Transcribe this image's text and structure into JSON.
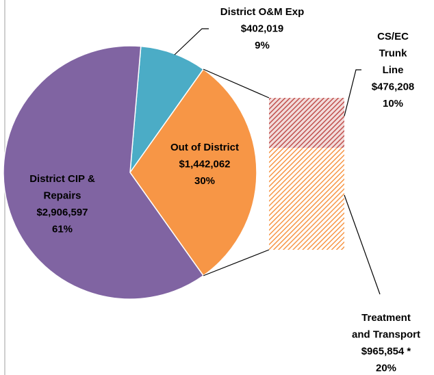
{
  "chart_data": {
    "type": "pie_of_bar",
    "slices": [
      {
        "name": [
          "District O&M Exp"
        ],
        "value": 402019,
        "value_label": "$402,019",
        "percent": 9,
        "percent_label": "9%",
        "color": "#4bacc6"
      },
      {
        "name": [
          "Out of District"
        ],
        "value": 1442062,
        "value_label": "$1,442,062",
        "percent": 30,
        "percent_label": "30%",
        "color": "#f79646"
      },
      {
        "name": [
          "District CIP &",
          "Repairs"
        ],
        "value": 2906597,
        "value_label": "$2,906,597",
        "percent": 61,
        "percent_label": "61%",
        "color": "#8064a2"
      }
    ],
    "bar": [
      {
        "name": [
          "CS/EC",
          "Trunk",
          "Line"
        ],
        "value": 476208,
        "value_label": "$476,208",
        "percent": 10,
        "percent_label": "10%",
        "color": "#c0504d"
      },
      {
        "name": [
          "Treatment",
          "and Transport"
        ],
        "value": 965854,
        "value_label": "$965,854 *",
        "percent": 20,
        "percent_label": "20%",
        "color": "#f79646"
      }
    ]
  }
}
